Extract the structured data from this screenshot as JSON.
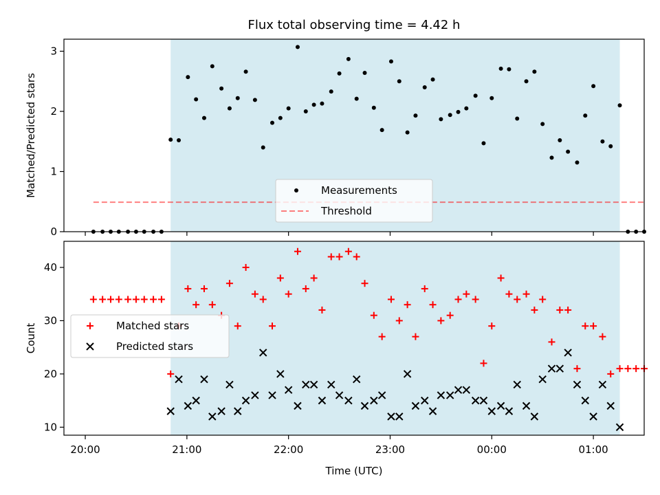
{
  "chart_data": {
    "type": "scatter",
    "title": "Flux total observing time = 4.42 h",
    "xlabel": "Time (UTC)",
    "x_unit": "hours since 20:00 UTC",
    "x_ticks": [
      {
        "x": 0,
        "label": "20:00"
      },
      {
        "x": 1,
        "label": "21:00"
      },
      {
        "x": 2,
        "label": "22:00"
      },
      {
        "x": 3,
        "label": "23:00"
      },
      {
        "x": 4,
        "label": "00:00"
      },
      {
        "x": 5,
        "label": "01:00"
      }
    ],
    "xlim": [
      -0.21,
      5.5
    ],
    "shaded_region": {
      "x": [
        0.84,
        5.26
      ],
      "color": "#add8e6",
      "alpha": 0.5
    },
    "panels": [
      {
        "ylabel": "Matched/Predicted stars",
        "ylim": [
          0,
          3.2
        ],
        "y_ticks": [
          0,
          1,
          2,
          3
        ],
        "legend": {
          "placement": "lower-center"
        },
        "series": [
          {
            "name": "Measurements",
            "marker": "dot",
            "color": "#000000",
            "points": [
              [
                0.08,
                0
              ],
              [
                0.17,
                0
              ],
              [
                0.25,
                0
              ],
              [
                0.33,
                0
              ],
              [
                0.42,
                0
              ],
              [
                0.5,
                0
              ],
              [
                0.58,
                0
              ],
              [
                0.67,
                0
              ],
              [
                0.75,
                0
              ],
              [
                0.84,
                1.53
              ],
              [
                0.92,
                1.52
              ],
              [
                1.01,
                2.57
              ],
              [
                1.09,
                2.2
              ],
              [
                1.17,
                1.89
              ],
              [
                1.25,
                2.75
              ],
              [
                1.34,
                2.38
              ],
              [
                1.42,
                2.05
              ],
              [
                1.5,
                2.22
              ],
              [
                1.58,
                2.66
              ],
              [
                1.67,
                2.19
              ],
              [
                1.75,
                1.4
              ],
              [
                1.84,
                1.81
              ],
              [
                1.92,
                1.89
              ],
              [
                2.0,
                2.05
              ],
              [
                2.09,
                3.07
              ],
              [
                2.17,
                2.0
              ],
              [
                2.25,
                2.11
              ],
              [
                2.33,
                2.13
              ],
              [
                2.42,
                2.33
              ],
              [
                2.5,
                2.63
              ],
              [
                2.59,
                2.87
              ],
              [
                2.67,
                2.21
              ],
              [
                2.75,
                2.64
              ],
              [
                2.84,
                2.06
              ],
              [
                2.92,
                1.69
              ],
              [
                3.01,
                2.83
              ],
              [
                3.09,
                2.5
              ],
              [
                3.17,
                1.65
              ],
              [
                3.25,
                1.93
              ],
              [
                3.34,
                2.4
              ],
              [
                3.42,
                2.53
              ],
              [
                3.5,
                1.87
              ],
              [
                3.59,
                1.94
              ],
              [
                3.67,
                1.99
              ],
              [
                3.75,
                2.05
              ],
              [
                3.84,
                2.26
              ],
              [
                3.92,
                1.47
              ],
              [
                4.0,
                2.22
              ],
              [
                4.09,
                2.71
              ],
              [
                4.17,
                2.7
              ],
              [
                4.25,
                1.88
              ],
              [
                4.34,
                2.5
              ],
              [
                4.42,
                2.66
              ],
              [
                4.5,
                1.79
              ],
              [
                4.59,
                1.23
              ],
              [
                4.67,
                1.52
              ],
              [
                4.75,
                1.33
              ],
              [
                4.84,
                1.15
              ],
              [
                4.92,
                1.93
              ],
              [
                5.0,
                2.42
              ],
              [
                5.09,
                1.5
              ],
              [
                5.17,
                1.42
              ],
              [
                5.26,
                2.1
              ],
              [
                5.34,
                0
              ],
              [
                5.42,
                0
              ],
              [
                5.5,
                0
              ]
            ]
          },
          {
            "name": "Threshold",
            "style": "dashed",
            "color": "#ff0000",
            "alpha": 0.5,
            "x": [
              0.08,
              5.5
            ],
            "y": 0.49
          }
        ]
      },
      {
        "ylabel": "Count",
        "ylim": [
          8.5,
          44.9
        ],
        "y_ticks": [
          10,
          20,
          30,
          40
        ],
        "legend": {
          "placement": "center-left"
        },
        "series": [
          {
            "name": "Matched stars",
            "marker": "plus",
            "color": "#ff0000",
            "points": [
              [
                0.08,
                34
              ],
              [
                0.17,
                34
              ],
              [
                0.25,
                34
              ],
              [
                0.33,
                34
              ],
              [
                0.42,
                34
              ],
              [
                0.5,
                34
              ],
              [
                0.58,
                34
              ],
              [
                0.67,
                34
              ],
              [
                0.75,
                34
              ],
              [
                0.84,
                20
              ],
              [
                0.92,
                29
              ],
              [
                1.01,
                36
              ],
              [
                1.09,
                33
              ],
              [
                1.17,
                36
              ],
              [
                1.25,
                33
              ],
              [
                1.34,
                31
              ],
              [
                1.42,
                37
              ],
              [
                1.5,
                29
              ],
              [
                1.58,
                40
              ],
              [
                1.67,
                35
              ],
              [
                1.75,
                34
              ],
              [
                1.84,
                29
              ],
              [
                1.92,
                38
              ],
              [
                2.0,
                35
              ],
              [
                2.09,
                43
              ],
              [
                2.17,
                36
              ],
              [
                2.25,
                38
              ],
              [
                2.33,
                32
              ],
              [
                2.42,
                42
              ],
              [
                2.5,
                42
              ],
              [
                2.59,
                43
              ],
              [
                2.67,
                42
              ],
              [
                2.75,
                37
              ],
              [
                2.84,
                31
              ],
              [
                2.92,
                27
              ],
              [
                3.01,
                34
              ],
              [
                3.09,
                30
              ],
              [
                3.17,
                33
              ],
              [
                3.25,
                27
              ],
              [
                3.34,
                36
              ],
              [
                3.42,
                33
              ],
              [
                3.5,
                30
              ],
              [
                3.59,
                31
              ],
              [
                3.67,
                34
              ],
              [
                3.75,
                35
              ],
              [
                3.84,
                34
              ],
              [
                3.92,
                22
              ],
              [
                4.0,
                29
              ],
              [
                4.09,
                38
              ],
              [
                4.17,
                35
              ],
              [
                4.25,
                34
              ],
              [
                4.34,
                35
              ],
              [
                4.42,
                32
              ],
              [
                4.5,
                34
              ],
              [
                4.59,
                26
              ],
              [
                4.67,
                32
              ],
              [
                4.75,
                32
              ],
              [
                4.84,
                21
              ],
              [
                4.92,
                29
              ],
              [
                5.0,
                29
              ],
              [
                5.09,
                27
              ],
              [
                5.17,
                20
              ],
              [
                5.26,
                21
              ],
              [
                5.34,
                21
              ],
              [
                5.42,
                21
              ],
              [
                5.5,
                21
              ]
            ]
          },
          {
            "name": "Predicted stars",
            "marker": "x",
            "color": "#000000",
            "points": [
              [
                0.84,
                13
              ],
              [
                0.92,
                19
              ],
              [
                1.01,
                14
              ],
              [
                1.09,
                15
              ],
              [
                1.17,
                19
              ],
              [
                1.25,
                12
              ],
              [
                1.34,
                13
              ],
              [
                1.42,
                18
              ],
              [
                1.5,
                13
              ],
              [
                1.58,
                15
              ],
              [
                1.67,
                16
              ],
              [
                1.75,
                24
              ],
              [
                1.84,
                16
              ],
              [
                1.92,
                20
              ],
              [
                2.0,
                17
              ],
              [
                2.09,
                14
              ],
              [
                2.17,
                18
              ],
              [
                2.25,
                18
              ],
              [
                2.33,
                15
              ],
              [
                2.42,
                18
              ],
              [
                2.5,
                16
              ],
              [
                2.59,
                15
              ],
              [
                2.67,
                19
              ],
              [
                2.75,
                14
              ],
              [
                2.84,
                15
              ],
              [
                2.92,
                16
              ],
              [
                3.01,
                12
              ],
              [
                3.09,
                12
              ],
              [
                3.17,
                20
              ],
              [
                3.25,
                14
              ],
              [
                3.34,
                15
              ],
              [
                3.42,
                13
              ],
              [
                3.5,
                16
              ],
              [
                3.59,
                16
              ],
              [
                3.67,
                17
              ],
              [
                3.75,
                17
              ],
              [
                3.84,
                15
              ],
              [
                3.92,
                15
              ],
              [
                4.0,
                13
              ],
              [
                4.09,
                14
              ],
              [
                4.17,
                13
              ],
              [
                4.25,
                18
              ],
              [
                4.34,
                14
              ],
              [
                4.42,
                12
              ],
              [
                4.5,
                19
              ],
              [
                4.59,
                21
              ],
              [
                4.67,
                21
              ],
              [
                4.75,
                24
              ],
              [
                4.84,
                18
              ],
              [
                4.92,
                15
              ],
              [
                5.0,
                12
              ],
              [
                5.09,
                18
              ],
              [
                5.17,
                14
              ],
              [
                5.26,
                10
              ]
            ]
          }
        ]
      }
    ]
  }
}
